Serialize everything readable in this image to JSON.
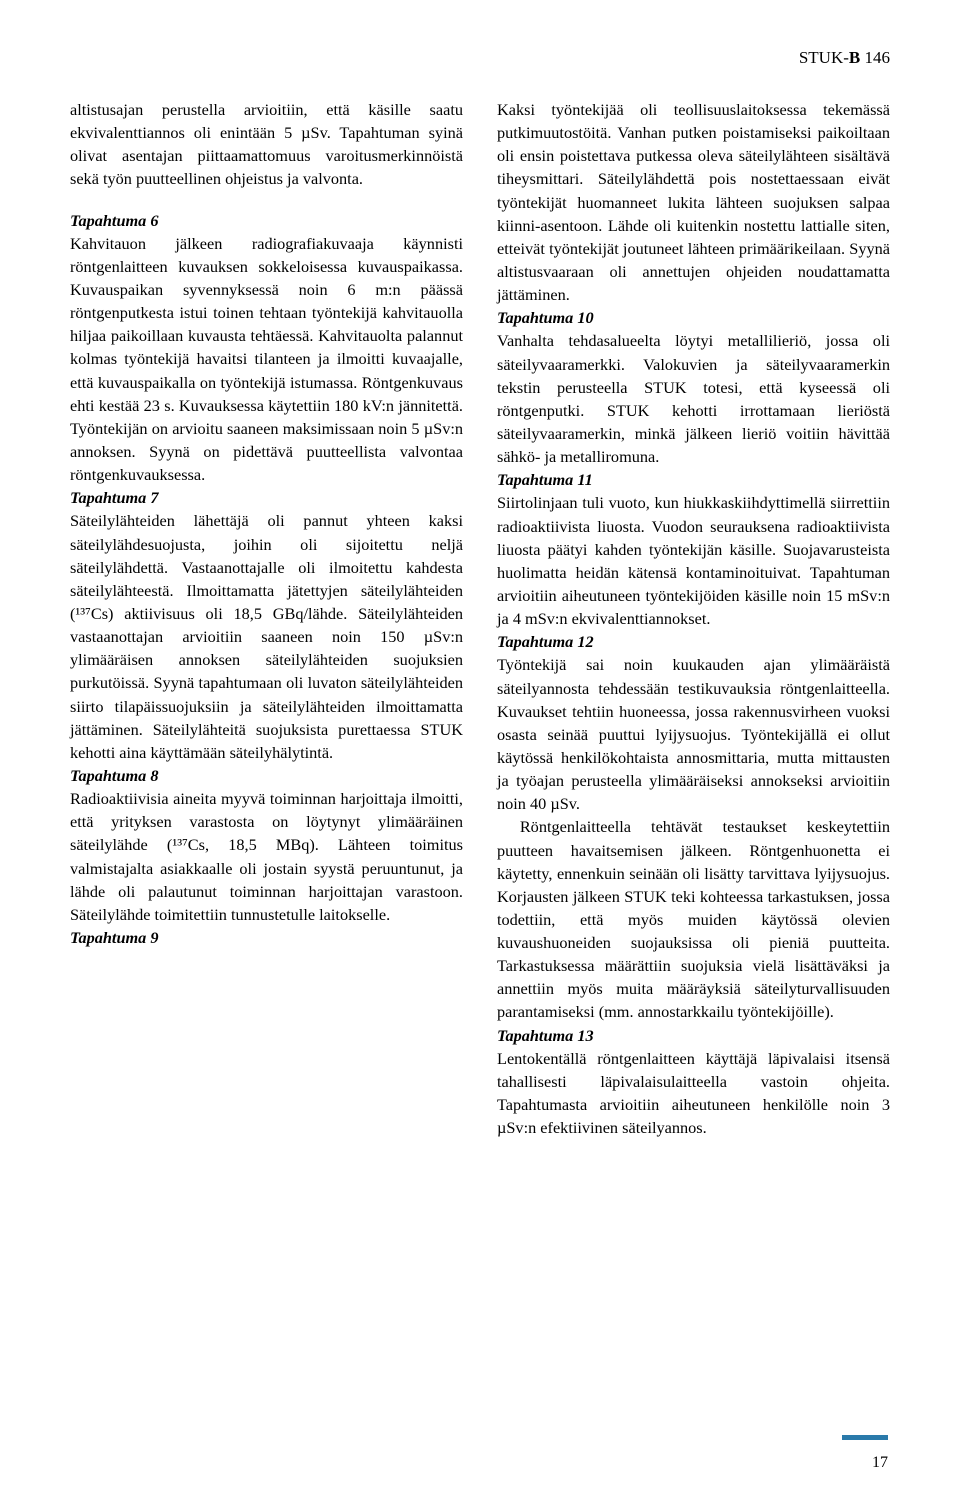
{
  "header": {
    "org": "STUK-",
    "bold": "B",
    "num": " 146"
  },
  "intro": "altistusajan perustella arvioitiin, että käsille saatu ekvivalenttiannos oli enintään 5 µSv. Tapahtuman syinä olivat asentajan piittaamattomuus varoitusmerkinnöistä sekä työn puutteellinen ohjeistus ja valvonta.",
  "e6": {
    "title": "Tapahtuma 6",
    "body": "Kahvitauon jälkeen radiografiakuvaaja käynnisti röntgenlaitteen kuvauksen sokkeloisessa kuvauspaikassa. Kuvauspaikan syvennyksessä noin 6 m:n päässä röntgenputkesta istui toinen tehtaan työntekijä kahvitauolla hiljaa paikoillaan kuvausta tehtäessä. Kahvitauolta palannut kolmas työntekijä havaitsi tilanteen ja ilmoitti kuvaajalle, että kuvauspaikalla on työntekijä istumassa. Röntgenkuvaus ehti kestää 23 s. Kuvauksessa käytettiin 180 kV:n jännitettä. Työntekijän on arvioitu saaneen maksimissaan noin 5 µSv:n annoksen. Syynä on pidettävä puutteellista valvontaa röntgenkuvauksessa."
  },
  "e7": {
    "title": "Tapahtuma 7",
    "body": "Säteilylähteiden lähettäjä oli pannut yhteen kaksi säteilylähdesuojusta, joihin oli sijoitettu neljä säteilylähdettä. Vastaanottajalle oli ilmoitettu kahdesta säteilylähteestä. Ilmoittamatta jätettyjen säteilylähteiden (¹³⁷Cs) aktiivisuus oli 18,5 GBq/lähde. Säteilylähteiden vastaanottajan arvioitiin saaneen noin 150 µSv:n ylimääräisen annoksen säteilylähteiden suojuksien purkutöissä. Syynä tapahtumaan oli luvaton säteilylähteiden siirto tilapäissuojuksiin ja säteilylähteiden ilmoittamatta jättäminen. Säteilylähteitä suojuksista purettaessa STUK kehotti aina käyttämään säteilyhälytintä."
  },
  "e8": {
    "title": "Tapahtuma 8",
    "body": "Radioaktiivisia aineita myyvä toiminnan harjoittaja ilmoitti, että yrityksen varastosta on löytynyt ylimääräinen säteilylähde (¹³⁷Cs, 18,5 MBq). Lähteen toimitus valmistajalta asiakkaalle oli jostain syystä peruuntunut, ja lähde oli palautunut toiminnan harjoittajan varastoon. Säteilylähde toimitettiin tunnustetulle laitokselle."
  },
  "e9": {
    "title": "Tapahtuma 9",
    "body": "Kaksi työntekijää oli teollisuuslaitoksessa tekemässä putkimuutostöitä. Vanhan putken poistamiseksi paikoiltaan oli ensin poistettava putkessa oleva säteilylähteen sisältävä tiheysmittari. Säteilylähdettä pois nostettaessaan eivät työntekijät huomanneet lukita lähteen suojuksen salpaa kiinni-asentoon. Lähde oli kuitenkin nostettu lattialle siten, etteivät työntekijät joutuneet lähteen primäärikeilaan. Syynä altistusvaaraan oli annettujen ohjeiden noudattamatta jättäminen."
  },
  "e10": {
    "title": "Tapahtuma 10",
    "body": "Vanhalta tehdasalueelta löytyi metallilieriö, jossa oli säteilyvaaramerkki. Valokuvien ja säteilyvaaramerkin tekstin perusteella STUK totesi, että kyseessä oli röntgenputki. STUK kehotti irrottamaan lieriöstä säteilyvaaramerkin, minkä jälkeen lieriö voitiin hävittää sähkö- ja metalliromuna."
  },
  "e11": {
    "title": "Tapahtuma 11",
    "body": "Siirtolinjaan tuli vuoto, kun hiukkaskiihdyttimellä siirrettiin radioaktiivista liuosta. Vuodon seurauksena radioaktiivista liuosta päätyi kahden työntekijän käsille. Suojavarusteista huolimatta heidän kätensä kontaminoituivat. Tapahtuman arvioitiin aiheutuneen työntekijöiden käsille noin 15 mSv:n ja 4 mSv:n ekvivalenttiannokset."
  },
  "e12": {
    "title": "Tapahtuma 12",
    "body1": "Työntekijä sai noin kuukauden ajan ylimääräistä säteilyannosta tehdessään testikuvauksia röntgenlaitteella. Kuvaukset tehtiin huoneessa, jossa rakennusvirheen vuoksi osasta seinää puuttui lyijysuojus. Työntekijällä ei ollut käytössä henkilökohtaista annosmittaria, mutta mittausten ja työajan perusteella ylimääräiseksi annokseksi arvioitiin noin 40 µSv.",
    "body2": "Röntgenlaitteella tehtävät testaukset keskeytettiin puutteen havaitsemisen jälkeen. Röntgenhuonetta ei käytetty, ennenkuin seinään oli lisätty tarvittava lyijysuojus. Korjausten jälkeen STUK teki kohteessa tarkastuksen, jossa todettiin, että myös muiden käytössä olevien kuvaushuoneiden suojauksissa oli pieniä puutteita. Tarkastuksessa määrättiin suojuksia vielä lisättäväksi ja annettiin myös muita määräyksiä säteilyturvallisuuden parantamiseksi (mm. annostarkkailu työntekijöille)."
  },
  "e13": {
    "title": "Tapahtuma 13",
    "body": "Lentokentällä röntgenlaitteen käyttäjä läpivalaisi itsensä tahallisesti läpivalaisulaitteella vastoin ohjeita. Tapahtumasta arvioitiin aiheutuneen henkilölle noin 3 µSv:n efektiivinen säteilyannos."
  },
  "pagenum": "17",
  "accent_color": "#2a7aaa"
}
